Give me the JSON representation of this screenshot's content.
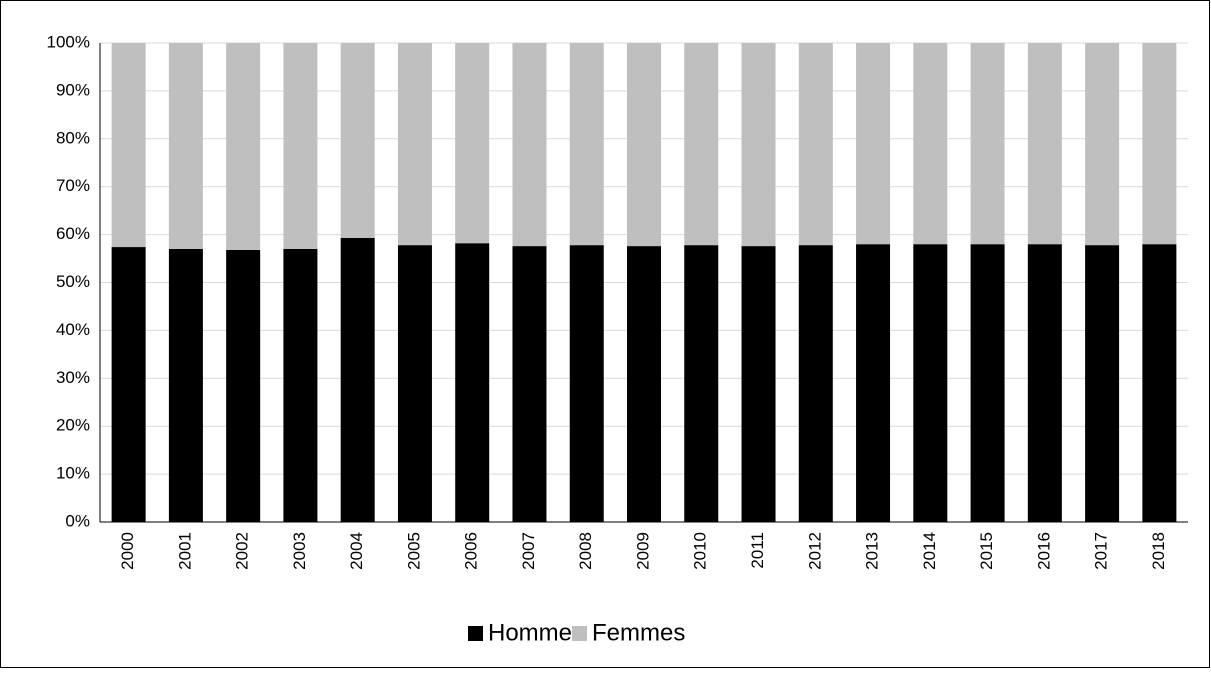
{
  "chart_data": {
    "type": "stacked_bar",
    "categories": [
      "2000",
      "2001",
      "2002",
      "2003",
      "2004",
      "2005",
      "2006",
      "2007",
      "2008",
      "2009",
      "2010",
      "2011",
      "2012",
      "2013",
      "2014",
      "2015",
      "2016",
      "2017",
      "2018"
    ],
    "series": [
      {
        "name": "Hommes",
        "color": "#000000",
        "values": [
          57.4,
          57.0,
          56.8,
          57.0,
          59.3,
          57.8,
          58.2,
          57.6,
          57.8,
          57.6,
          57.8,
          57.6,
          57.8,
          58.0,
          58.0,
          58.0,
          58.0,
          57.8,
          58.0
        ]
      },
      {
        "name": "Femmes",
        "color": "#bfbfbf",
        "values": [
          42.6,
          43.0,
          43.2,
          43.0,
          40.7,
          42.2,
          41.8,
          42.4,
          42.2,
          42.4,
          42.2,
          42.4,
          42.2,
          42.0,
          42.0,
          42.0,
          42.0,
          42.2,
          42.0
        ]
      }
    ],
    "ylim": [
      0,
      100
    ],
    "yticks": [
      {
        "value": 0,
        "label": "0%"
      },
      {
        "value": 10,
        "label": "10%"
      },
      {
        "value": 20,
        "label": "20%"
      },
      {
        "value": 30,
        "label": "30%"
      },
      {
        "value": 40,
        "label": "40%"
      },
      {
        "value": 50,
        "label": "50%"
      },
      {
        "value": 60,
        "label": "60%"
      },
      {
        "value": 70,
        "label": "70%"
      },
      {
        "value": 80,
        "label": "80%"
      },
      {
        "value": 90,
        "label": "90%"
      },
      {
        "value": 100,
        "label": "100%"
      }
    ],
    "grid": true,
    "legend": "bottom"
  }
}
